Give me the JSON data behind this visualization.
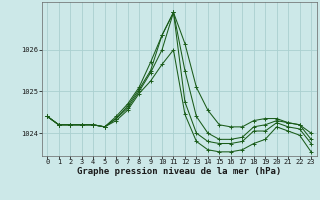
{
  "title": "Graphe pression niveau de la mer (hPa)",
  "xlabel": "Graphe pression niveau de la mer (hPa)",
  "background_color": "#cce8e8",
  "line_color": "#1a5c1a",
  "grid_color": "#aad0d0",
  "hours": [
    0,
    1,
    2,
    3,
    4,
    5,
    6,
    7,
    8,
    9,
    10,
    11,
    12,
    13,
    14,
    15,
    16,
    17,
    18,
    19,
    20,
    21,
    22,
    23
  ],
  "series": [
    [
      1024.4,
      1024.2,
      1024.2,
      1024.2,
      1024.2,
      1024.15,
      1024.4,
      1024.7,
      1025.1,
      1025.7,
      1026.35,
      1026.9,
      1026.15,
      1025.1,
      1024.55,
      1024.2,
      1024.15,
      1024.15,
      1024.3,
      1024.35,
      1024.35,
      1024.25,
      1024.2,
      1024.0
    ],
    [
      1024.4,
      1024.2,
      1024.2,
      1024.2,
      1024.2,
      1024.15,
      1024.35,
      1024.65,
      1025.05,
      1025.5,
      1026.35,
      1026.9,
      1025.5,
      1024.4,
      1024.0,
      1023.85,
      1023.85,
      1023.9,
      1024.15,
      1024.2,
      1024.3,
      1024.25,
      1024.2,
      1023.85
    ],
    [
      1024.4,
      1024.2,
      1024.2,
      1024.2,
      1024.2,
      1024.15,
      1024.35,
      1024.6,
      1025.0,
      1025.45,
      1026.0,
      1026.9,
      1024.75,
      1024.0,
      1023.8,
      1023.75,
      1023.75,
      1023.8,
      1024.05,
      1024.05,
      1024.25,
      1024.15,
      1024.1,
      1023.75
    ],
    [
      1024.4,
      1024.2,
      1024.2,
      1024.2,
      1024.2,
      1024.15,
      1024.3,
      1024.55,
      1024.95,
      1025.25,
      1025.65,
      1026.0,
      1024.45,
      1023.8,
      1023.6,
      1023.55,
      1023.55,
      1023.6,
      1023.75,
      1023.85,
      1024.15,
      1024.05,
      1023.95,
      1023.55
    ]
  ],
  "ylim_bottom": 1023.45,
  "ylim_top": 1027.15,
  "ytick_positions": [
    1024.0,
    1025.0,
    1026.0
  ],
  "ytick_labels": [
    "1024",
    "1025",
    "1026"
  ],
  "xticks": [
    0,
    1,
    2,
    3,
    4,
    5,
    6,
    7,
    8,
    9,
    10,
    11,
    12,
    13,
    14,
    15,
    16,
    17,
    18,
    19,
    20,
    21,
    22,
    23
  ],
  "title_fontsize": 6.5,
  "tick_fontsize": 5.0,
  "marker": "+",
  "markersize": 2.5,
  "linewidth": 0.75
}
